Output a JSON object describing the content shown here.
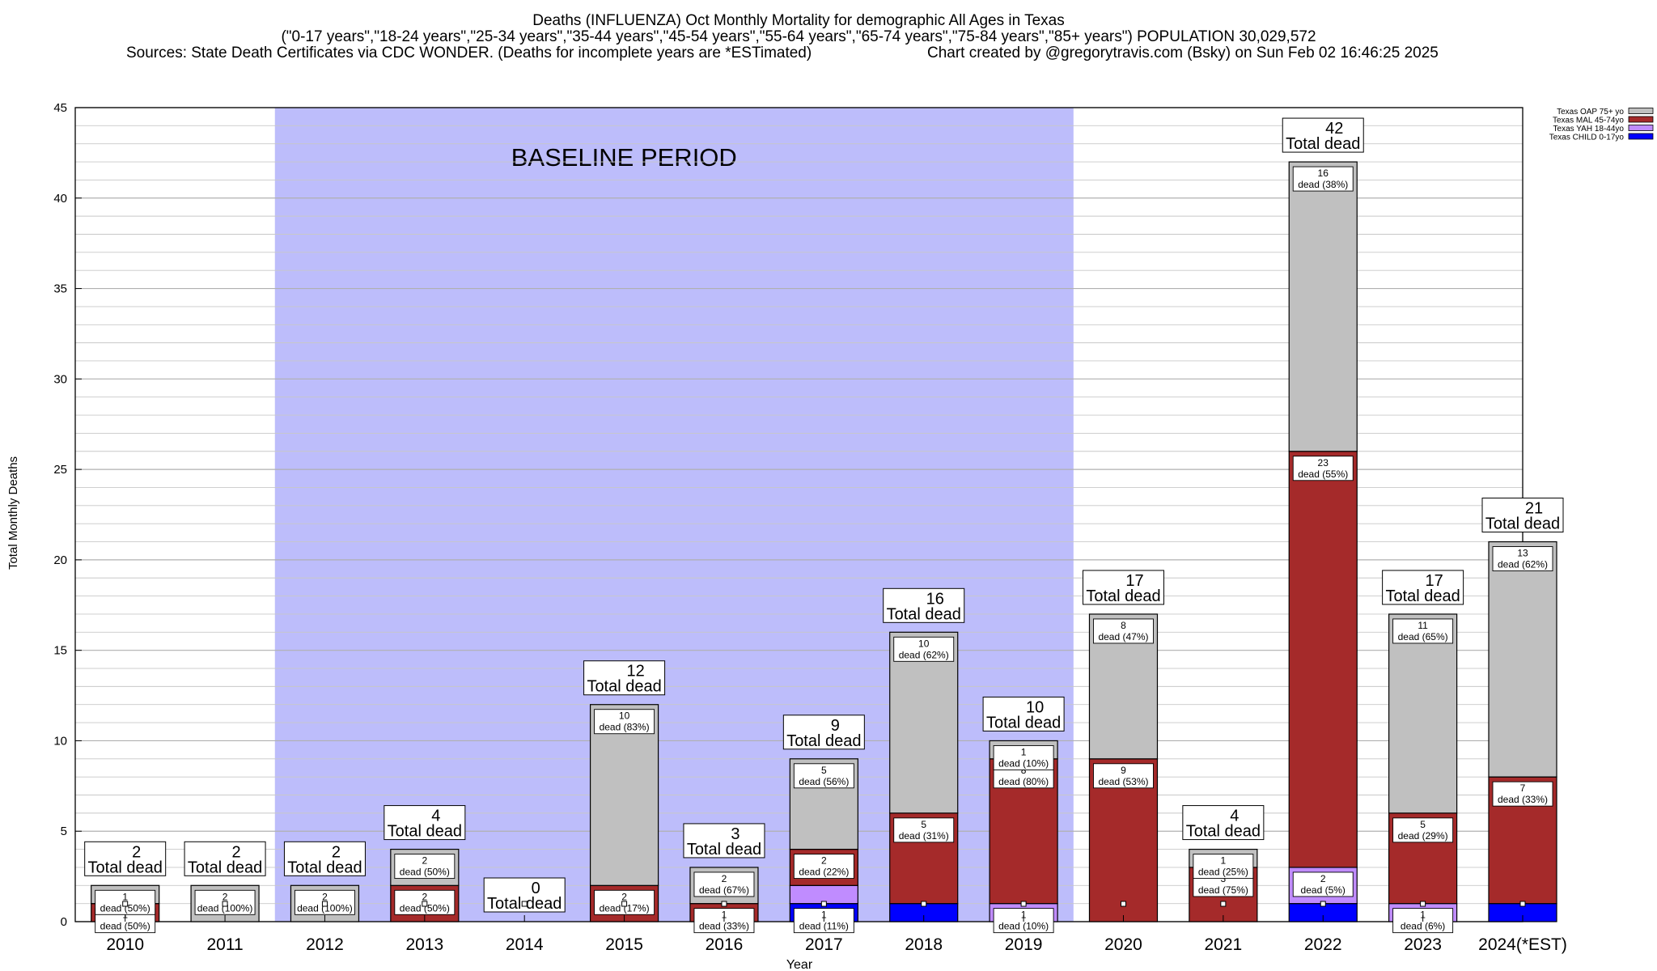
{
  "chart_data": {
    "type": "bar",
    "title_lines": [
      "Deaths (INFLUENZA) Oct Monthly Mortality for demographic All Ages in Texas",
      "(\"0-17 years\",\"18-24 years\",\"25-34 years\",\"35-44 years\",\"45-54 years\",\"55-64 years\",\"65-74 years\",\"75-84 years\",\"85+ years\") POPULATION 30,029,572",
      "Sources: State Death Certificates via CDC WONDER. (Deaths for incomplete years are *ESTimated)",
      "Chart created by @gregorytravis.com (Bsky) on Sun Feb 02 16:46:25 2025"
    ],
    "xlabel": "Year",
    "ylabel": "Total Monthly Deaths",
    "ylim": [
      0,
      45
    ],
    "yticks": [
      0,
      5,
      10,
      15,
      20,
      25,
      30,
      35,
      40,
      45
    ],
    "minor_grid_step": 1,
    "grid": true,
    "legend_position": "top-right",
    "baseline": {
      "label": "BASELINE PERIOD",
      "start": "2012",
      "end": "2019",
      "color": "#bdbdfb"
    },
    "total_suffix": "Total dead",
    "categories": [
      "2010",
      "2011",
      "2012",
      "2013",
      "2014",
      "2015",
      "2016",
      "2017",
      "2018",
      "2019",
      "2020",
      "2021",
      "2022",
      "2023",
      "2024(*EST)"
    ],
    "totals": [
      2,
      2,
      2,
      4,
      0,
      12,
      3,
      9,
      16,
      10,
      17,
      4,
      42,
      17,
      21
    ],
    "series": [
      {
        "name": "Texas CHILD 0-17yo",
        "color": "#0000ff",
        "values": [
          0,
          0,
          0,
          0,
          0,
          0,
          0,
          1,
          1,
          0,
          0,
          0,
          1,
          0,
          1
        ],
        "labels": [
          null,
          null,
          null,
          null,
          null,
          null,
          null,
          [
            "1",
            "dead (11%)"
          ],
          null,
          null,
          null,
          null,
          null,
          null,
          null
        ]
      },
      {
        "name": "Texas YAH 18-44yo",
        "color": "#c08cff",
        "values": [
          0,
          0,
          0,
          0,
          0,
          0,
          0,
          1,
          0,
          1,
          0,
          0,
          2,
          1,
          0
        ],
        "labels": [
          null,
          null,
          null,
          null,
          null,
          null,
          null,
          null,
          null,
          [
            "1",
            "dead (10%)"
          ],
          null,
          null,
          [
            "2",
            "dead (5%)"
          ],
          [
            "1",
            "dead (6%)"
          ],
          null
        ]
      },
      {
        "name": "Texas MAL 45-74yo",
        "color": "#a52a2a",
        "values": [
          1,
          0,
          0,
          2,
          0,
          2,
          1,
          2,
          5,
          8,
          9,
          3,
          23,
          5,
          7
        ],
        "labels": [
          [
            "1",
            "dead (50%)"
          ],
          null,
          null,
          [
            "2",
            "dead (50%)"
          ],
          null,
          [
            "2",
            "dead (17%)"
          ],
          [
            "1",
            "dead (33%)"
          ],
          [
            "2",
            "dead (22%)"
          ],
          [
            "5",
            "dead (31%)"
          ],
          [
            "8",
            "dead (80%)"
          ],
          [
            "9",
            "dead (53%)"
          ],
          [
            "3",
            "dead (75%)"
          ],
          [
            "23",
            "dead (55%)"
          ],
          [
            "5",
            "dead (29%)"
          ],
          [
            "7",
            "dead (33%)"
          ]
        ]
      },
      {
        "name": "Texas OAP 75+ yo",
        "color": "#c0c0c0",
        "values": [
          1,
          2,
          2,
          2,
          0,
          10,
          2,
          5,
          10,
          1,
          8,
          1,
          16,
          11,
          13
        ],
        "labels": [
          [
            "1",
            "dead (50%)"
          ],
          [
            "2",
            "dead (100%)"
          ],
          [
            "2",
            "dead (100%)"
          ],
          [
            "2",
            "dead (50%)"
          ],
          null,
          [
            "10",
            "dead (83%)"
          ],
          [
            "2",
            "dead (67%)"
          ],
          [
            "5",
            "dead (56%)"
          ],
          [
            "10",
            "dead (62%)"
          ],
          [
            "1",
            "dead (10%)"
          ],
          [
            "8",
            "dead (47%)"
          ],
          [
            "1",
            "dead (25%)"
          ],
          [
            "16",
            "dead (38%)"
          ],
          [
            "11",
            "dead (65%)"
          ],
          [
            "13",
            "dead (62%)"
          ]
        ]
      }
    ]
  }
}
